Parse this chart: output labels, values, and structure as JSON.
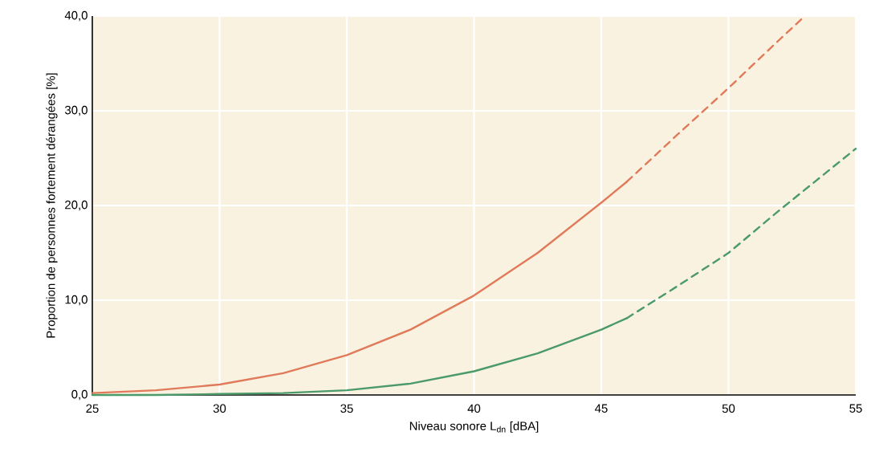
{
  "chart_data": {
    "type": "line",
    "xlabel": "Niveau sonore L$_{dn}$ [dBA]",
    "ylabel": "Proportion de personnes fortement dérangées [%]",
    "xlim": [
      25,
      55
    ],
    "ylim": [
      0,
      40
    ],
    "xticks": [
      25,
      30,
      35,
      40,
      45,
      50,
      55
    ],
    "yticks": [
      {
        "value": 0,
        "label": "0,0"
      },
      {
        "value": 10,
        "label": "10,0"
      },
      {
        "value": 20,
        "label": "20,0"
      },
      {
        "value": 30,
        "label": "30,0"
      },
      {
        "value": 40,
        "label": "40,0"
      }
    ],
    "grid": true,
    "marker": "none",
    "series": [
      {
        "color": "#e07a5a",
        "line_style": "solid",
        "x": [
          25,
          27.5,
          30,
          32.5,
          35,
          37.5,
          40,
          42.5,
          45,
          46
        ],
        "values": [
          0.2,
          0.5,
          1.1,
          2.3,
          4.2,
          6.9,
          10.5,
          15.0,
          20.3,
          22.5
        ]
      },
      {
        "color": "#e07a5a",
        "line_style": "dashed",
        "x": [
          46,
          48,
          50,
          52,
          53
        ],
        "values": [
          22.5,
          27.5,
          32.4,
          37.5,
          40
        ]
      },
      {
        "color": "#4a9a6a",
        "line_style": "solid",
        "x": [
          25,
          27.5,
          30,
          32.5,
          35,
          37.5,
          40,
          42.5,
          45,
          46
        ],
        "values": [
          0,
          0,
          0.1,
          0.2,
          0.5,
          1.2,
          2.5,
          4.4,
          6.9,
          8.1
        ]
      },
      {
        "color": "#4a9a6a",
        "line_style": "dashed",
        "x": [
          46,
          48,
          50,
          52,
          55
        ],
        "values": [
          8.1,
          11.5,
          15.0,
          19.5,
          26
        ]
      }
    ]
  }
}
